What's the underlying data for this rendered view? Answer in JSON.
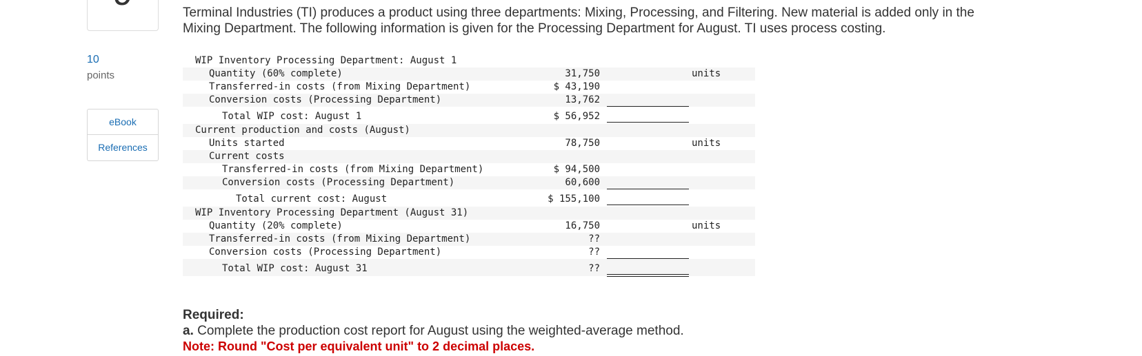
{
  "question_number": "9",
  "points": {
    "value": "10",
    "label": "points"
  },
  "side_buttons": {
    "ebook": "eBook",
    "references": "References"
  },
  "intro": "Terminal Industries (TI) produces a product using three departments: Mixing, Processing, and Filtering. New material is added only in the Mixing Department. The following information is given for the Processing Department for August. TI uses process costing.",
  "table": {
    "rows": [
      {
        "label": "WIP Inventory Processing Department: August 1",
        "value": "",
        "unit": ""
      },
      {
        "label": "Quantity (60% complete)",
        "value": "31,750",
        "unit": "units"
      },
      {
        "label": "Transferred-in costs (from Mixing Department)",
        "value": "$ 43,190",
        "unit": ""
      },
      {
        "label": "Conversion costs (Processing Department)",
        "value": "13,762",
        "unit": ""
      },
      {
        "label": "Total WIP cost: August 1",
        "value": "$ 56,952",
        "unit": ""
      },
      {
        "label": "Current production and costs (August)",
        "value": "",
        "unit": ""
      },
      {
        "label": "Units started",
        "value": "78,750",
        "unit": "units"
      },
      {
        "label": "Current costs",
        "value": "",
        "unit": ""
      },
      {
        "label": "Transferred-in costs (from Mixing Department)",
        "value": "$ 94,500",
        "unit": ""
      },
      {
        "label": "Conversion costs (Processing Department)",
        "value": "60,600",
        "unit": ""
      },
      {
        "label": "Total current cost: August",
        "value": "$ 155,100",
        "unit": ""
      },
      {
        "label": "WIP Inventory Processing Department (August 31)",
        "value": "",
        "unit": ""
      },
      {
        "label": "Quantity (20% complete)",
        "value": "16,750",
        "unit": "units"
      },
      {
        "label": "Transferred-in costs (from Mixing Department)",
        "value": "??",
        "unit": ""
      },
      {
        "label": "Conversion costs (Processing Department)",
        "value": "??",
        "unit": ""
      },
      {
        "label": "Total WIP cost: August 31",
        "value": "??",
        "unit": ""
      }
    ]
  },
  "required": {
    "title": "Required:",
    "part_a_prefix": "a.",
    "part_a_text": "Complete the production cost report for August using the weighted-average method.",
    "note": "Note: Round \"Cost per equivalent unit\" to 2 decimal places."
  }
}
